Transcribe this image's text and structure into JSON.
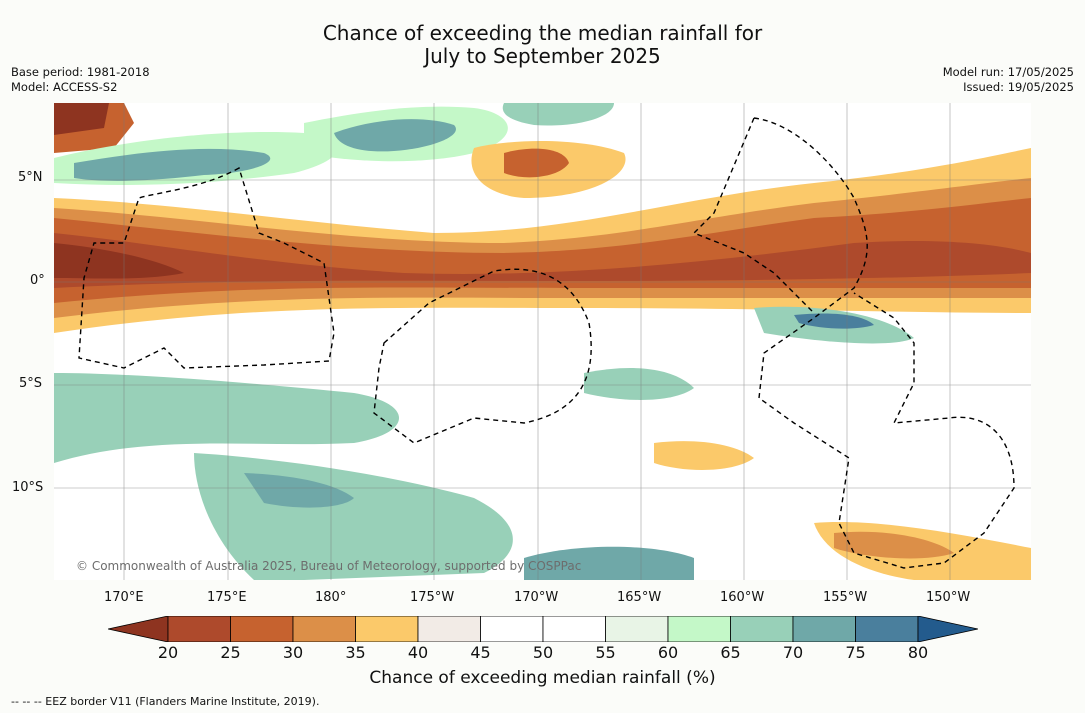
{
  "title_line1": "Chance of exceeding the median rainfall for",
  "title_line2": "July to September 2025",
  "meta": {
    "base_period": "Base period: 1981-2018",
    "model": "Model: ACCESS-S2",
    "model_run": "Model run: 17/05/2025",
    "issued": "Issued: 19/05/2025"
  },
  "lat_ticks": [
    "5°N",
    "0°",
    "5°S",
    "10°S"
  ],
  "lon_ticks": [
    "170°E",
    "175°E",
    "180°",
    "175°W",
    "170°W",
    "165°W",
    "160°W",
    "155°W",
    "150°W"
  ],
  "colorbar": {
    "label": "Chance of exceeding median rainfall (%)",
    "ticks": [
      "20",
      "25",
      "30",
      "35",
      "40",
      "45",
      "50",
      "55",
      "60",
      "65",
      "70",
      "75",
      "80"
    ],
    "colors": [
      "#8e3420",
      "#ae4a2c",
      "#c6622f",
      "#dc8f48",
      "#fbc96a",
      "#f2ebe6",
      "#ffffff",
      "#ffffff",
      "#e8f4e6",
      "#c4f8c8",
      "#98d0b8",
      "#6fa8a8",
      "#4a7f9d",
      "#235b8d"
    ]
  },
  "copyright": "© Commonwealth of Australia 2025, Bureau of Meteorology, supported by COSPPac",
  "footnote": "-- -- -- EEZ border V11 (Flanders Marine Institute, 2019)."
}
